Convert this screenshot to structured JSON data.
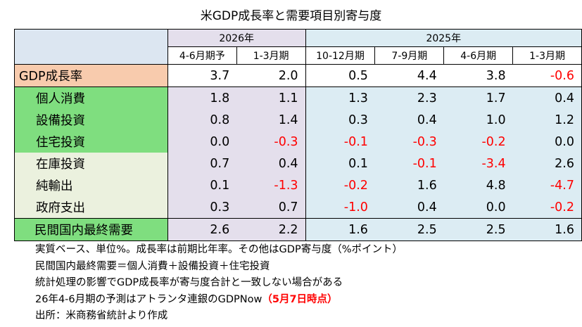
{
  "title": "米GDP成長率と需要項目別寄与度",
  "chart_data": {
    "type": "table",
    "year_headers": [
      "2026年",
      "2025年"
    ],
    "columns": [
      "4-6月期予",
      "1-3月期",
      "10-12月期",
      "7-9月期",
      "4-6月期",
      "1-3月期"
    ],
    "rows": [
      {
        "label": "GDP成長率",
        "values": [
          "3.7",
          "2.0",
          "0.5",
          "4.4",
          "3.8",
          "-0.6"
        ]
      },
      {
        "label": "個人消費",
        "values": [
          "1.8",
          "1.1",
          "1.3",
          "2.3",
          "1.7",
          "0.4"
        ]
      },
      {
        "label": "設備投資",
        "values": [
          "0.8",
          "1.4",
          "0.3",
          "0.4",
          "1.0",
          "1.2"
        ]
      },
      {
        "label": "住宅投資",
        "values": [
          "0.0",
          "-0.3",
          "-0.1",
          "-0.3",
          "-0.2",
          "0.0"
        ]
      },
      {
        "label": "在庫投資",
        "values": [
          "0.7",
          "0.4",
          "0.1",
          "-0.1",
          "-3.4",
          "2.6"
        ]
      },
      {
        "label": "純輸出",
        "values": [
          "0.1",
          "-1.3",
          "-0.2",
          "1.6",
          "4.8",
          "-4.7"
        ]
      },
      {
        "label": "政府支出",
        "values": [
          "0.3",
          "0.7",
          "-1.0",
          "0.4",
          "0.0",
          "-0.2"
        ]
      },
      {
        "label": "民間国内最終需要",
        "values": [
          "2.6",
          "2.2",
          "1.6",
          "2.5",
          "2.5",
          "1.6"
        ]
      }
    ],
    "negative_color": "#ff0000"
  },
  "notes": [
    "実質ベース、単位%。成長率は前期比年率。その他はGDP寄与度（%ポイント）",
    "民間国内最終需要＝個人消費＋設備投資＋住宅投資",
    "統計処理の影響でGDP成長率が寄与度合計と一致しない場合がある"
  ],
  "note_gdpnow": {
    "text": "26年4-6月期の予測はアトランタ連銀のGDPNow",
    "highlight": "（5月7日時点）"
  },
  "source": "出所：米商務省統計より作成",
  "colors": {
    "gdp_label": "#f8cbad",
    "private_demand": "#7fde7f",
    "other": "#ebf1de",
    "period_2026": "#e4dfec",
    "period_2025": "#dcecf3",
    "header_blank": "#dce6f1"
  }
}
